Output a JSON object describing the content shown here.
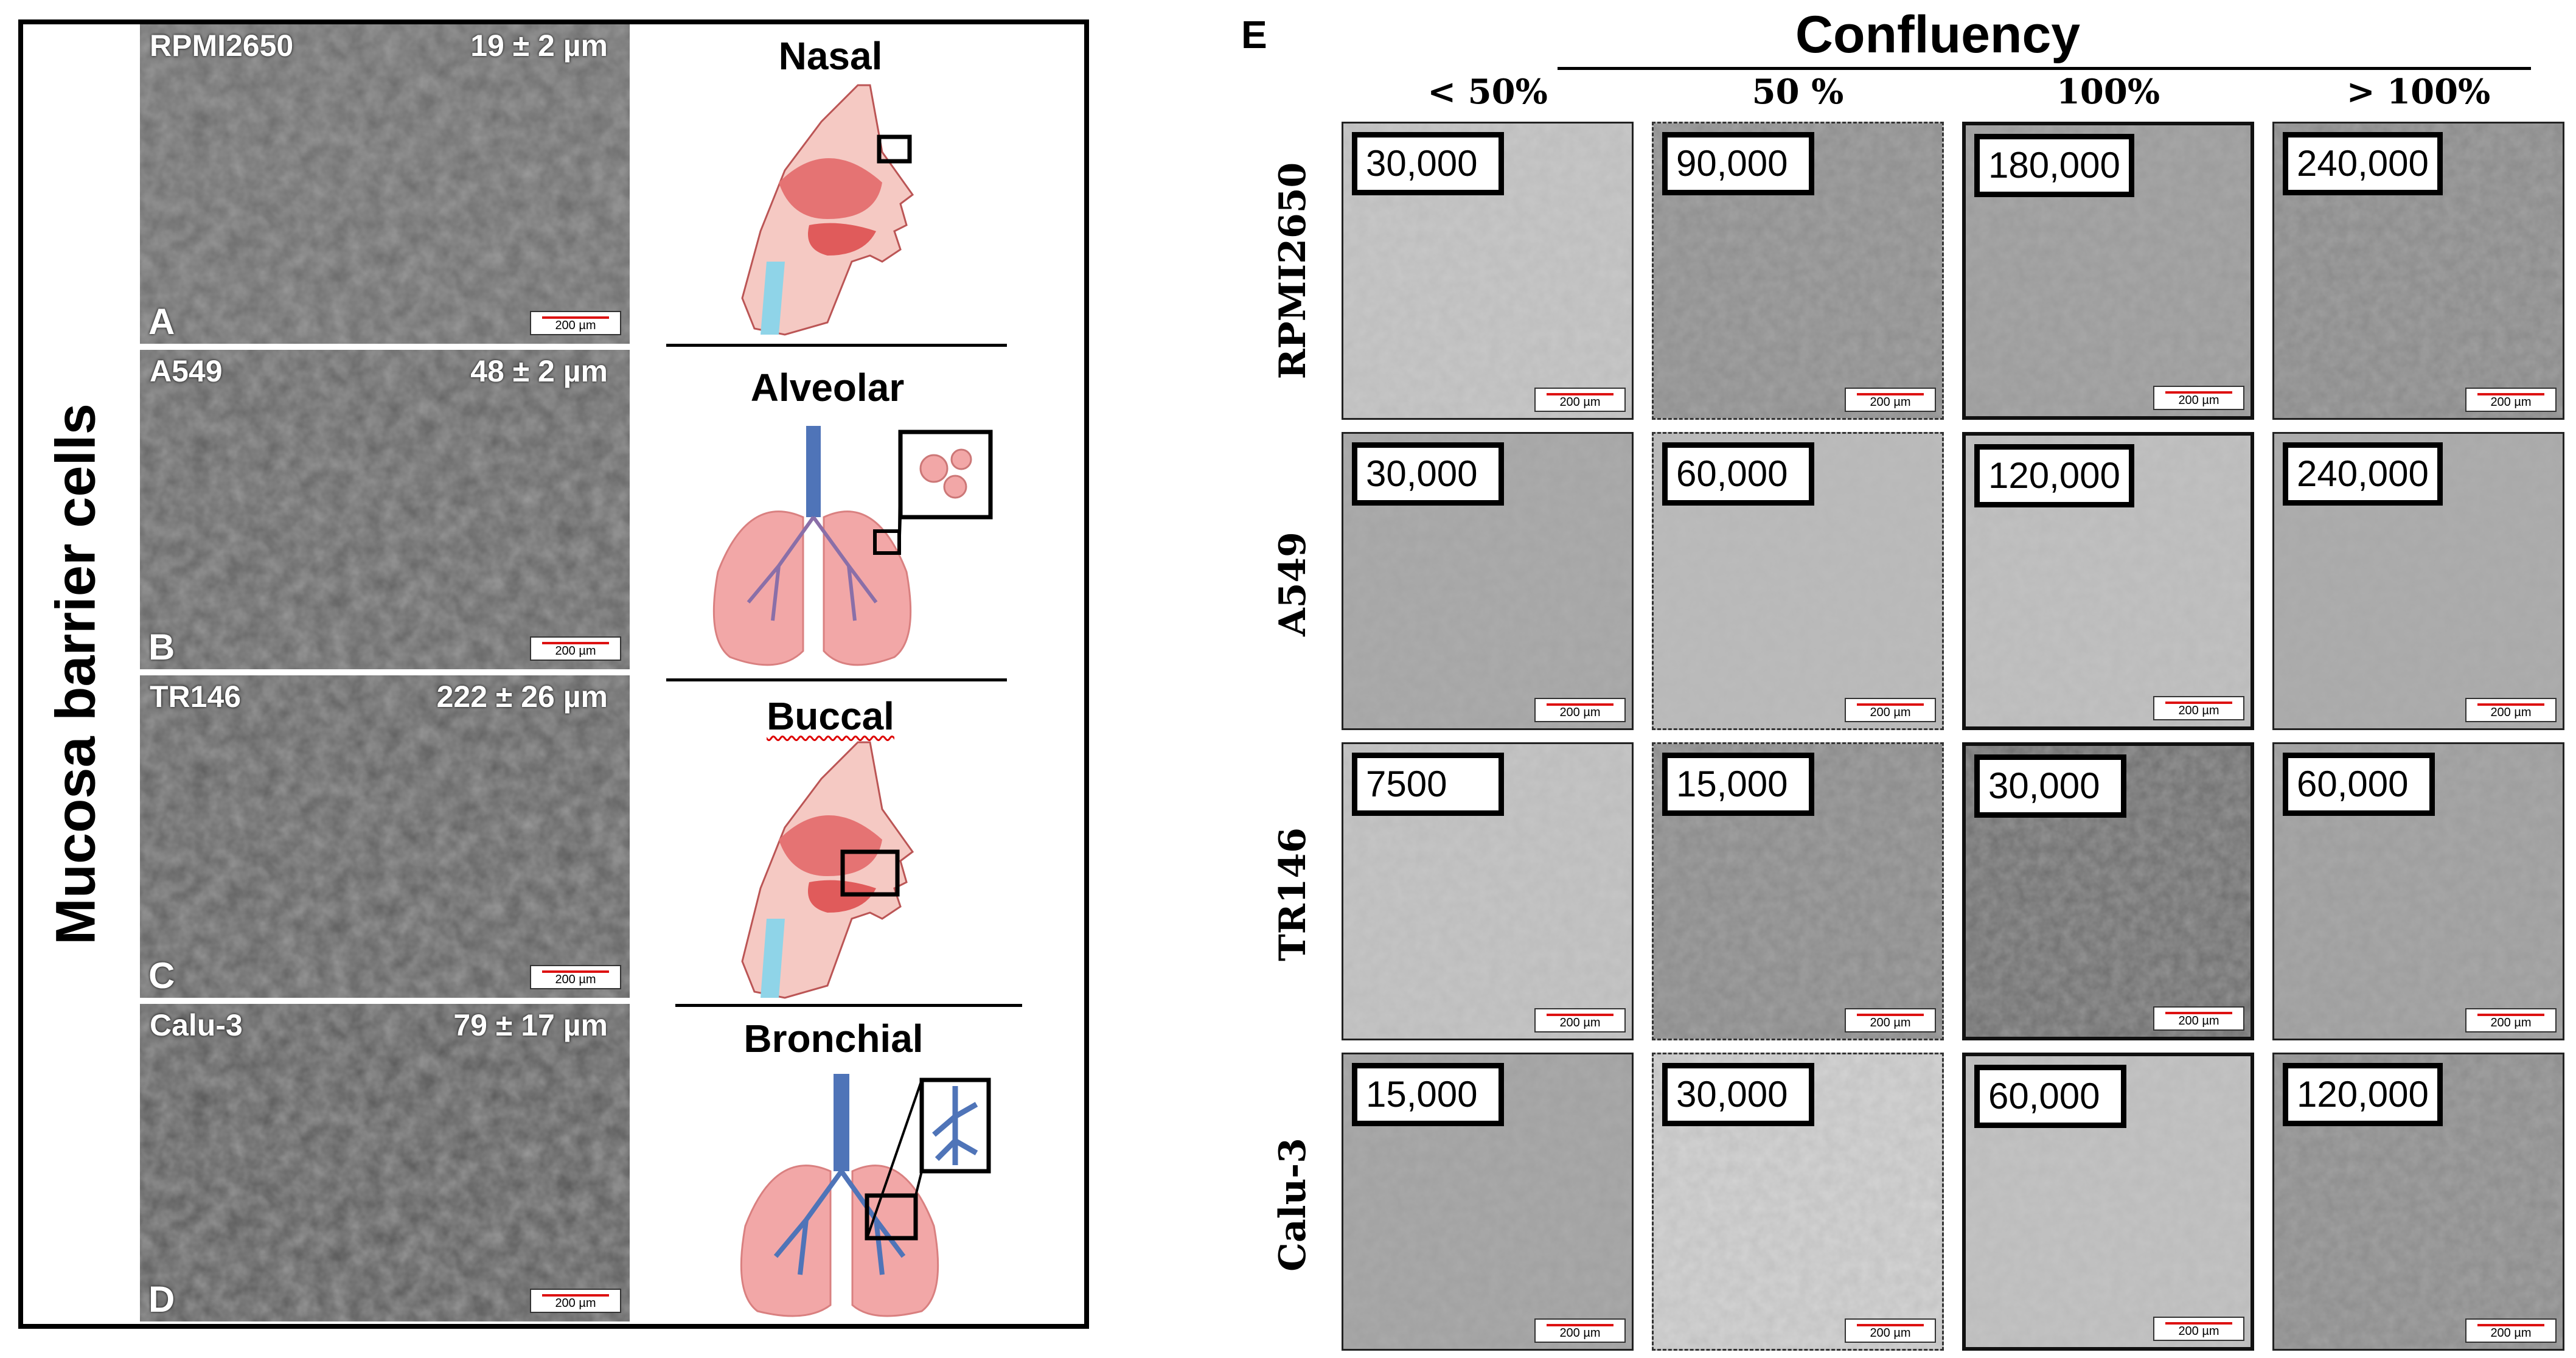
{
  "left_panel": {
    "side_label": "Mucosa barrier cells",
    "scale_label": "200 µm",
    "micrographs": [
      {
        "cell_line": "RPMI2650",
        "size": "19 ± 2 µm",
        "letter": "A"
      },
      {
        "cell_line": "A549",
        "size": "48 ± 2 µm",
        "letter": "B"
      },
      {
        "cell_line": "TR146",
        "size": "222 ± 26 µm",
        "letter": "C"
      },
      {
        "cell_line": "Calu-3",
        "size": "79 ± 17 µm",
        "letter": "D"
      }
    ],
    "illustrations": [
      {
        "title": "Nasal",
        "icon": "nasal-anatomy-icon"
      },
      {
        "title": "Alveolar",
        "icon": "lungs-alveoli-icon"
      },
      {
        "title": "Buccal",
        "icon": "buccal-anatomy-icon"
      },
      {
        "title": "Bronchial",
        "icon": "lungs-bronchi-icon"
      }
    ]
  },
  "right_panel": {
    "panel_letter": "E",
    "title": "Confluency",
    "scale_label": "200 µm",
    "columns": [
      "< 50%",
      "50 %",
      "100%",
      "> 100%"
    ],
    "rows": [
      {
        "cell_line": "RPMI2650",
        "counts": [
          "30,000",
          "90,000",
          "180,000",
          "240,000"
        ]
      },
      {
        "cell_line": "A549",
        "counts": [
          "30,000",
          "60,000",
          "120,000",
          "240,000"
        ]
      },
      {
        "cell_line": "TR146",
        "counts": [
          "7500",
          "15,000",
          "30,000",
          "60,000"
        ]
      },
      {
        "cell_line": "Calu-3",
        "counts": [
          "15,000",
          "30,000",
          "60,000",
          "120,000"
        ]
      }
    ]
  },
  "colors": {
    "tissue_pink": "#f2a7a7",
    "tissue_dark": "#d85c5c",
    "airway_blue": "#4f74b8",
    "scale_red": "#dd1111"
  }
}
